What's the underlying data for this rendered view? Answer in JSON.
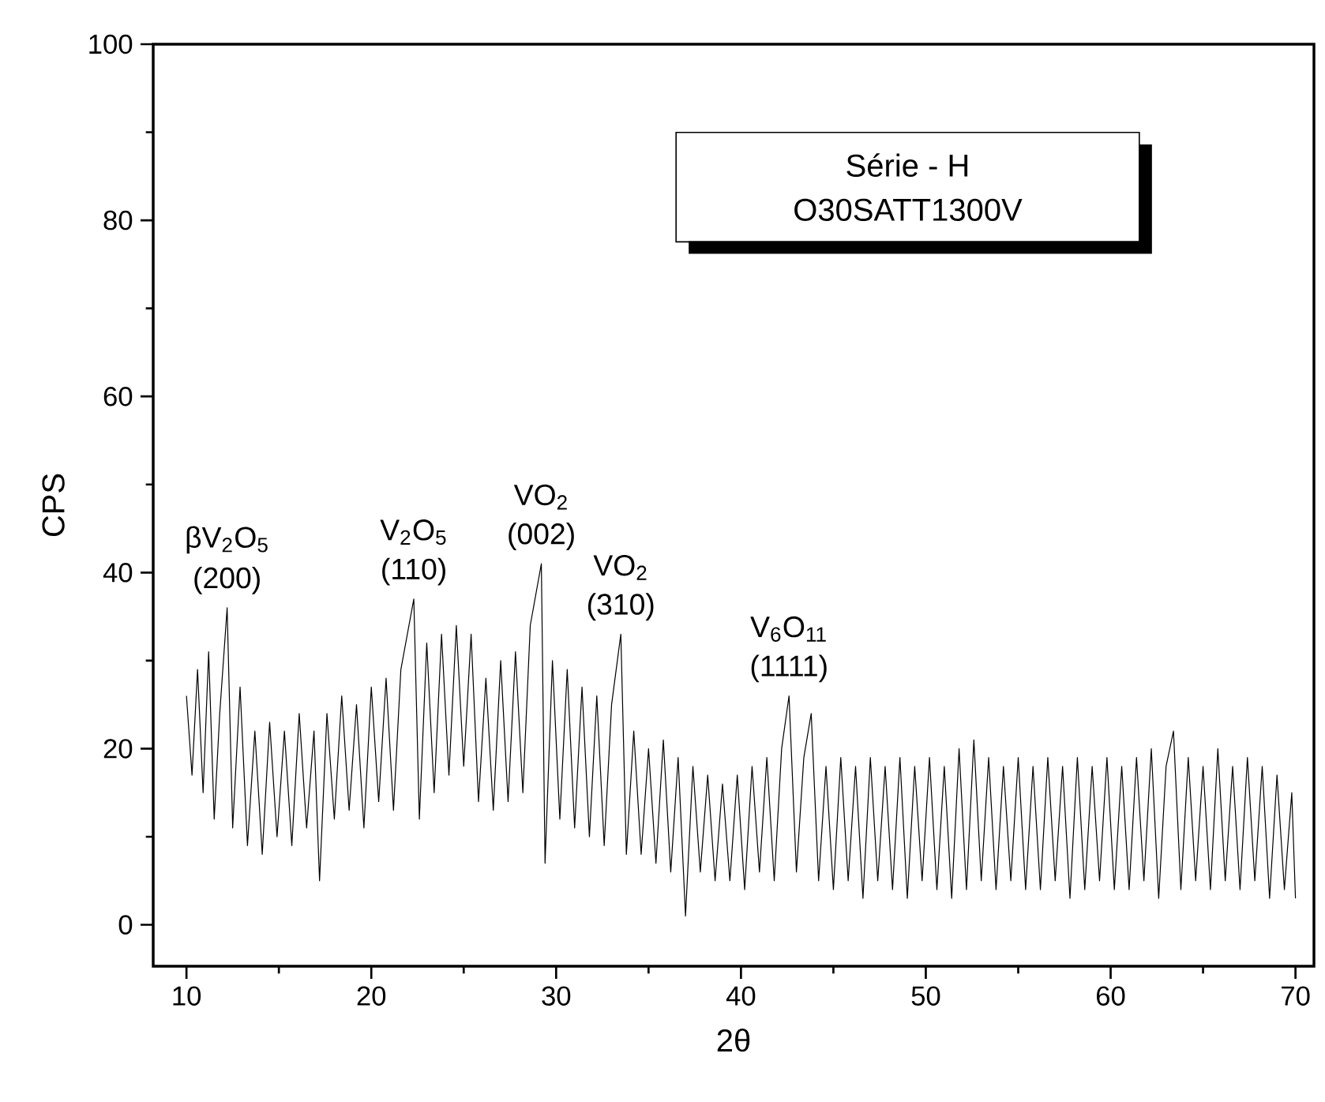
{
  "chart_data": {
    "type": "line",
    "xlabel": "2θ",
    "ylabel": "CPS",
    "xlim": [
      8.2,
      71
    ],
    "ylim": [
      -4.7,
      100
    ],
    "xticks": [
      10,
      20,
      30,
      40,
      50,
      60,
      70
    ],
    "yticks": [
      0,
      20,
      40,
      60,
      80,
      100
    ],
    "grid": false,
    "marker": "none",
    "line_style": "solid",
    "annotations": [
      "Série - H",
      "O30SATT1300V",
      {
        "text": "βV$_{2}$O$_{5}$",
        "x": 12.2,
        "y": 36
      },
      {
        "text": "(200)",
        "x": 12.2,
        "y": 36
      },
      {
        "text": "V$_{2}$O$_{5}$",
        "x": 22.3,
        "y": 37
      },
      {
        "text": "(110)",
        "x": 22.3,
        "y": 37
      },
      {
        "text": "VO$_{2}$",
        "x": 29.2,
        "y": 41
      },
      {
        "text": "(002)",
        "x": 29.2,
        "y": 41
      },
      {
        "text": "VO$_{2}$",
        "x": 33.5,
        "y": 33
      },
      {
        "text": "(310)",
        "x": 33.5,
        "y": 33
      },
      {
        "text": "V$_{6}$O$_{11}$",
        "x": 42.6,
        "y": 26
      },
      {
        "text": "(1111)",
        "x": 42.6,
        "y": 26
      }
    ],
    "series": [
      {
        "color": "#000000",
        "x": [
          10.0,
          10.3,
          10.6,
          10.9,
          11.2,
          11.5,
          11.8,
          12.2,
          12.5,
          12.9,
          13.3,
          13.7,
          14.1,
          14.5,
          14.9,
          15.3,
          15.7,
          16.1,
          16.5,
          16.9,
          17.2,
          17.6,
          18.0,
          18.4,
          18.8,
          19.2,
          19.6,
          20.0,
          20.4,
          20.8,
          21.2,
          21.6,
          22.3,
          22.6,
          23.0,
          23.4,
          23.8,
          24.2,
          24.6,
          25.0,
          25.4,
          25.8,
          26.2,
          26.6,
          27.0,
          27.4,
          27.8,
          28.2,
          28.6,
          29.2,
          29.4,
          29.8,
          30.2,
          30.6,
          31.0,
          31.4,
          31.8,
          32.2,
          32.6,
          33.0,
          33.5,
          33.8,
          34.2,
          34.6,
          35.0,
          35.4,
          35.8,
          36.2,
          36.6,
          37.0,
          37.4,
          37.8,
          38.2,
          38.6,
          39.0,
          39.4,
          39.8,
          40.2,
          40.6,
          41.0,
          41.4,
          41.8,
          42.2,
          42.6,
          43.0,
          43.4,
          43.8,
          44.2,
          44.6,
          45.0,
          45.4,
          45.8,
          46.2,
          46.6,
          47.0,
          47.4,
          47.8,
          48.2,
          48.6,
          49.0,
          49.4,
          49.8,
          50.2,
          50.6,
          51.0,
          51.4,
          51.8,
          52.2,
          52.6,
          53.0,
          53.4,
          53.8,
          54.2,
          54.6,
          55.0,
          55.4,
          55.8,
          56.2,
          56.6,
          57.0,
          57.4,
          57.8,
          58.2,
          58.6,
          59.0,
          59.4,
          59.8,
          60.2,
          60.6,
          61.0,
          61.4,
          61.8,
          62.2,
          62.6,
          63.0,
          63.4,
          63.8,
          64.2,
          64.6,
          65.0,
          65.4,
          65.8,
          66.2,
          66.6,
          67.0,
          67.4,
          67.8,
          68.2,
          68.6,
          69.0,
          69.4,
          69.8,
          70.0
        ],
        "values": [
          26,
          17,
          29,
          15,
          31,
          12,
          24,
          36,
          11,
          27,
          9,
          22,
          8,
          23,
          10,
          22,
          9,
          24,
          11,
          22,
          5,
          24,
          12,
          26,
          13,
          25,
          11,
          27,
          14,
          28,
          13,
          29,
          37,
          12,
          32,
          15,
          33,
          17,
          34,
          18,
          33,
          14,
          28,
          13,
          30,
          14,
          31,
          15,
          34,
          41,
          7,
          30,
          12,
          29,
          11,
          27,
          10,
          26,
          9,
          25,
          33,
          8,
          22,
          8,
          20,
          7,
          21,
          6,
          19,
          1,
          18,
          6,
          17,
          5,
          16,
          5,
          17,
          4,
          18,
          6,
          19,
          5,
          20,
          26,
          6,
          19,
          24,
          5,
          18,
          4,
          19,
          5,
          18,
          3,
          19,
          5,
          18,
          4,
          19,
          3,
          18,
          5,
          19,
          4,
          18,
          3,
          20,
          4,
          21,
          5,
          19,
          4,
          18,
          5,
          19,
          4,
          18,
          4,
          19,
          5,
          18,
          3,
          19,
          4,
          18,
          5,
          19,
          4,
          18,
          4,
          19,
          5,
          20,
          3,
          18,
          22,
          4,
          19,
          5,
          18,
          4,
          20,
          5,
          18,
          4,
          19,
          5,
          18,
          3,
          17,
          4,
          15,
          3
        ]
      }
    ]
  }
}
